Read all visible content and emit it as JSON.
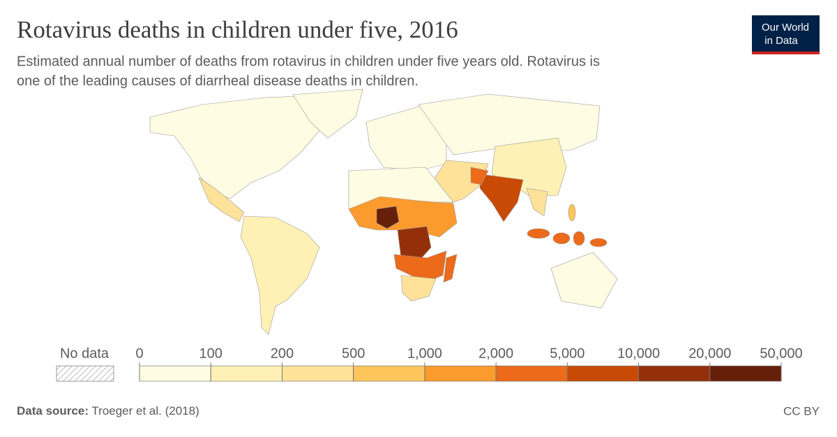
{
  "header": {
    "title": "Rotavirus deaths in children under five, 2016",
    "subtitle": [
      "Estimated annual number of deaths from rotavirus in children under five years old. Rotavirus is",
      "one of the leading causes of diarrheal disease deaths in children."
    ],
    "logo": [
      "Our World",
      "in Data"
    ]
  },
  "legend": {
    "no_data": "No data",
    "ticks": [
      0,
      100,
      200,
      500,
      {
        "value": 1000,
        "label": "1,000"
      },
      {
        "value": 2000,
        "label": "2,000"
      },
      {
        "value": 5000,
        "label": "5,000"
      },
      {
        "value": 10000,
        "label": "10,000"
      },
      {
        "value": 20000,
        "label": "20,000"
      },
      {
        "value": 50000,
        "label": "50,000"
      }
    ],
    "colors": [
      "#fefce3",
      "#fff1b5",
      "#fee29a",
      "#fdc55a",
      "#fb9b2e",
      "#ec6a1a",
      "#c94a05",
      "#93300a",
      "#66200a"
    ]
  },
  "footer": {
    "source_label": "Data source:",
    "source": "Troeger et al. (2018)",
    "license": "CC BY"
  }
}
